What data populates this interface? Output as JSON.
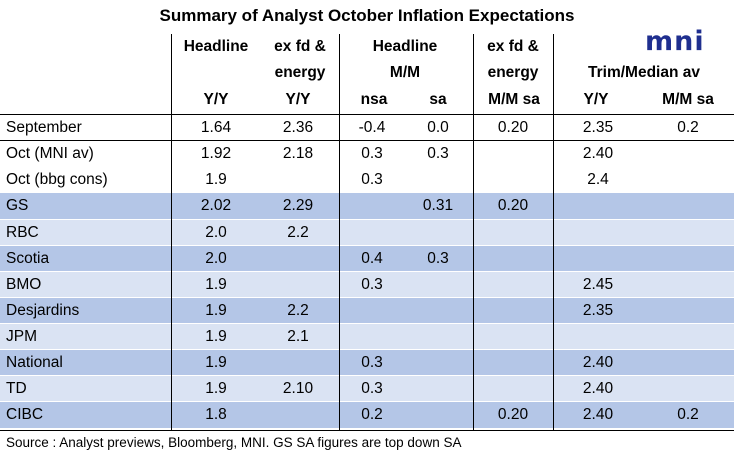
{
  "title": "Summary of Analyst October Inflation Expectations",
  "logo": "mni",
  "headers": {
    "headline": "Headline",
    "exfd1": "ex fd &",
    "energy1": "energy",
    "headline_mm_1": "Headline",
    "headline_mm_2": "M/M",
    "exfd2": "ex fd &",
    "energy2": "energy",
    "trim": "Trim/Median av",
    "sub": [
      "Y/Y",
      "Y/Y",
      "nsa",
      "sa",
      "M/M sa",
      "Y/Y",
      "M/M sa"
    ]
  },
  "rows": [
    {
      "name": "September",
      "values": [
        "1.64",
        "2.36",
        "-0.4",
        "0.0",
        "0.20",
        "2.35",
        "0.2"
      ]
    },
    {
      "name": "Oct (MNI av)",
      "values": [
        "1.92",
        "2.18",
        "0.3",
        "0.3",
        "",
        "2.40",
        ""
      ]
    },
    {
      "name": "Oct (bbg cons)",
      "values": [
        "1.9",
        "",
        "0.3",
        "",
        "",
        "2.4",
        ""
      ]
    },
    {
      "name": "GS",
      "values": [
        "2.02",
        "2.29",
        "",
        "0.31",
        "0.20",
        "",
        ""
      ]
    },
    {
      "name": "RBC",
      "values": [
        "2.0",
        "2.2",
        "",
        "",
        "",
        "",
        ""
      ]
    },
    {
      "name": "Scotia",
      "values": [
        "2.0",
        "",
        "0.4",
        "0.3",
        "",
        "",
        ""
      ]
    },
    {
      "name": "BMO",
      "values": [
        "1.9",
        "",
        "0.3",
        "",
        "",
        "2.45",
        ""
      ]
    },
    {
      "name": "Desjardins",
      "values": [
        "1.9",
        "2.2",
        "",
        "",
        "",
        "2.35",
        ""
      ]
    },
    {
      "name": "JPM",
      "values": [
        "1.9",
        "2.1",
        "",
        "",
        "",
        "",
        ""
      ]
    },
    {
      "name": "National",
      "values": [
        "1.9",
        "",
        "0.3",
        "",
        "",
        "2.40",
        ""
      ]
    },
    {
      "name": "TD",
      "values": [
        "1.9",
        "2.10",
        "0.3",
        "",
        "",
        "2.40",
        ""
      ]
    },
    {
      "name": "CIBC",
      "values": [
        "1.8",
        "",
        "0.2",
        "",
        "0.20",
        "2.40",
        "0.2"
      ]
    }
  ],
  "source": "Source : Analyst previews, Bloomberg, MNI. GS SA figures are top down SA"
}
